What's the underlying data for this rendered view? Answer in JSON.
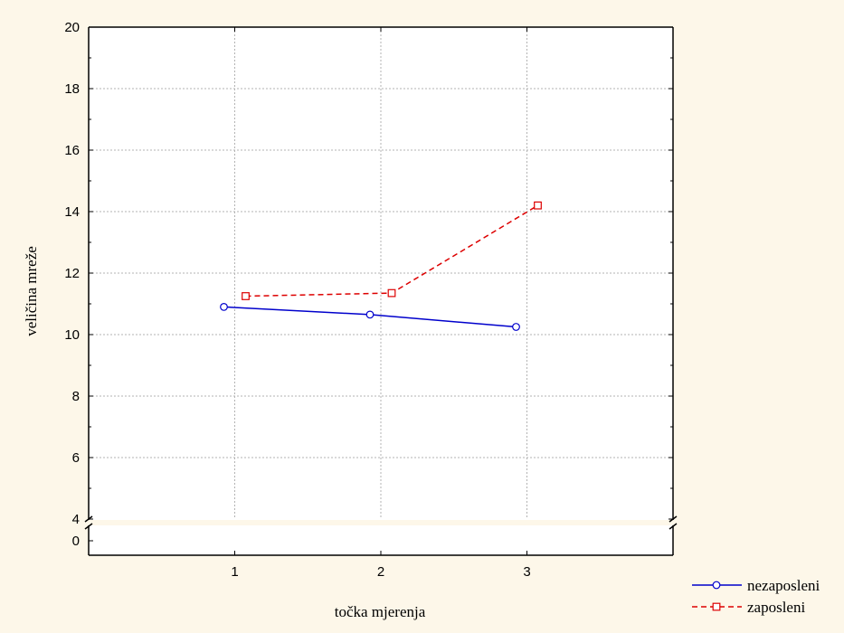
{
  "chart_data": {
    "type": "line",
    "xlabel": "točka mjerenja",
    "ylabel": "veličina mreže",
    "x_categories": [
      "1",
      "2",
      "3"
    ],
    "ylim_main": [
      4,
      20
    ],
    "y_ticks_main": [
      4,
      6,
      8,
      10,
      12,
      14,
      16,
      18,
      20
    ],
    "y_ticks_broken": [
      0
    ],
    "axis_break": true,
    "grid": true,
    "legend_position": "bottom-right",
    "series": [
      {
        "name": "nezaposleni",
        "color": "#0000cc",
        "line_style": "solid",
        "marker": "circle",
        "x": [
          1,
          2,
          3
        ],
        "values": [
          10.9,
          10.65,
          10.25
        ]
      },
      {
        "name": "zaposleni",
        "color": "#dd0000",
        "line_style": "dashed",
        "marker": "square",
        "x": [
          1,
          2,
          3
        ],
        "values": [
          11.25,
          11.35,
          14.2
        ]
      }
    ]
  }
}
